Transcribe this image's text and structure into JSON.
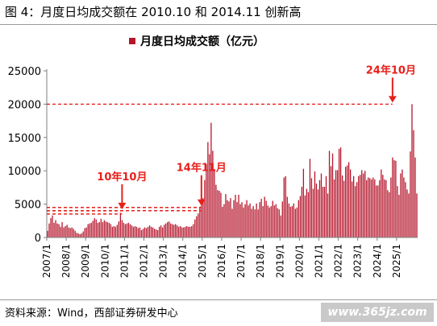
{
  "header": {
    "figure_title": "图 4：月度日均成交额在 2010.10 和 2014.11 创新高"
  },
  "footer": {
    "source": "资料来源：Wind，西部证券研发中心",
    "watermark": "www.365jz.com"
  },
  "colors": {
    "bar": "#b5152b",
    "annotation": "#e8201b",
    "axis": "#7f7f7f"
  },
  "chart_data": {
    "type": "bar",
    "legend": {
      "label": "月度日均成交额（亿元）",
      "placement": "top-center"
    },
    "ylim": [
      0,
      25000
    ],
    "yticks": [
      0,
      5000,
      10000,
      15000,
      20000,
      25000
    ],
    "xlabels": [
      "2007/1",
      "2008/1",
      "2009/1",
      "2010/1",
      "2011/1",
      "2012/1",
      "2013/1",
      "2014/1",
      "2015/1",
      "2016/1",
      "2017/1",
      "2018/1",
      "2019/1",
      "2020/1",
      "2021/1",
      "2022/1",
      "2023/1",
      "2024/1",
      "2025/1"
    ],
    "start_month": "2007/1",
    "values": [
      1000,
      2100,
      2900,
      3300,
      2200,
      2600,
      2100,
      2000,
      1600,
      2300,
      1500,
      1700,
      1900,
      1500,
      1400,
      1500,
      1300,
      1000,
      700,
      600,
      500,
      600,
      900,
      1400,
      1500,
      2000,
      2100,
      2200,
      2500,
      2900,
      2700,
      2200,
      2300,
      2800,
      2300,
      2600,
      2400,
      2300,
      2200,
      2000,
      1600,
      1700,
      1600,
      1900,
      2400,
      3700,
      2600,
      2200,
      2000,
      2100,
      2200,
      2000,
      1800,
      1600,
      1700,
      1600,
      1400,
      1500,
      1100,
      1300,
      1500,
      1400,
      1600,
      1800,
      1600,
      1500,
      1300,
      1200,
      1100,
      1600,
      1800,
      1500,
      1900,
      2100,
      2300,
      2400,
      2100,
      2000,
      1900,
      2000,
      1800,
      1600,
      1700,
      1500,
      1500,
      1600,
      1700,
      1600,
      1600,
      1700,
      2000,
      2700,
      3200,
      3600,
      4600,
      7800,
      5900,
      8600,
      11000,
      14300,
      12500,
      17200,
      13000,
      10300,
      7900,
      7100,
      7000,
      6700,
      4600,
      5000,
      6500,
      5600,
      5400,
      5900,
      4300,
      5600,
      6400,
      5300,
      6400,
      5000,
      5300,
      4500,
      5000,
      5600,
      4800,
      5100,
      4300,
      4700,
      4200,
      5100,
      4200,
      5300,
      5800,
      4700,
      6100,
      5500,
      4800,
      4500,
      4700,
      5500,
      4800,
      5000,
      4400,
      4200,
      3300,
      5400,
      9000,
      9200,
      6100,
      5100,
      4600,
      4700,
      5100,
      4300,
      4500,
      5600,
      6200,
      7600,
      10300,
      6300,
      7300,
      6800,
      11800,
      8900,
      7300,
      9900,
      8100,
      7200,
      8600,
      9600,
      7600,
      7600,
      9200,
      6600,
      13000,
      10700,
      12600,
      8700,
      10100,
      10100,
      13300,
      13500,
      9300,
      8500,
      10600,
      10800,
      11300,
      10200,
      8400,
      9200,
      7700,
      8300,
      9200,
      9400,
      10100,
      9600,
      10000,
      8600,
      9000,
      8900,
      8700,
      9000,
      8700,
      7800,
      7800,
      8600,
      10200,
      9400,
      8700,
      8600,
      7100,
      6800,
      9000,
      12000,
      11600,
      11500,
      7700,
      6400,
      9600,
      10200,
      9000,
      8300,
      7200,
      6600,
      12900,
      20000,
      16100,
      12000,
      6600
    ],
    "annotations": [
      {
        "label": "10年10月",
        "ref_month": "2010/11",
        "level": 4000
      },
      {
        "label": "14年11月",
        "ref_month": "2014/12",
        "level": 4500
      },
      {
        "label": "24年10月",
        "ref_month": "2024/10",
        "level": 20000
      }
    ]
  }
}
